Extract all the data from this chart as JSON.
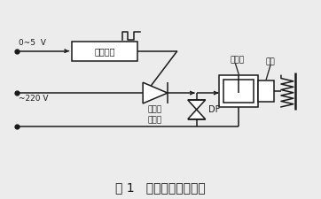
{
  "title": "图 1   电振机控制原理图",
  "title_fontsize": 10,
  "bg_color": "#ececec",
  "line_color": "#1a1a1a",
  "labels": {
    "trigger": "触发电路",
    "scr": "可控硅\n晶闸管",
    "df": "DF",
    "v05": "0~5  V",
    "v220": "~220 V",
    "electromagnet": "电磁铁",
    "armature": "衔铁"
  },
  "fig_width": 3.62,
  "fig_height": 2.25,
  "dpi": 100
}
